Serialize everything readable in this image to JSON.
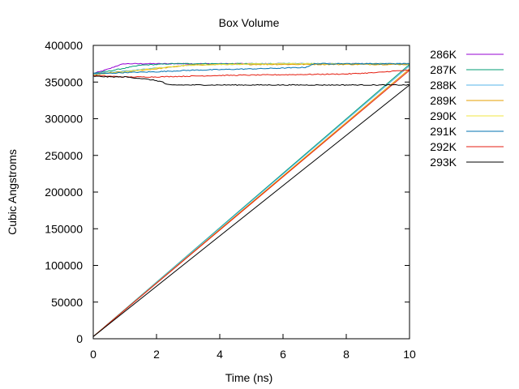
{
  "chart_data": {
    "type": "line",
    "title": "Box Volume",
    "xlabel": "Time (ns)",
    "ylabel": "Cubic Angstroms",
    "xlim": [
      0,
      10
    ],
    "ylim": [
      0,
      400000
    ],
    "xticks": [
      0,
      2,
      4,
      6,
      8,
      10
    ],
    "yticks": [
      0,
      50000,
      100000,
      150000,
      200000,
      250000,
      300000,
      350000,
      400000
    ],
    "grid": false,
    "legend_position": "outside-right",
    "series": [
      {
        "name": "286K",
        "color": "#9400d3",
        "x": [
          0,
          0.2,
          0.5,
          0.8,
          1.0,
          1.5,
          2.0,
          4.0,
          6.0,
          8.0,
          10.0
        ],
        "y": [
          362000,
          364000,
          368000,
          373000,
          375000,
          375000,
          375000,
          375000,
          375000,
          375000,
          375000
        ]
      },
      {
        "name": "287K",
        "color": "#009e73",
        "x": [
          0,
          0.5,
          1.0,
          1.5,
          2.0,
          2.5,
          4.0,
          6.0,
          8.0,
          10.0
        ],
        "y": [
          362000,
          365000,
          369000,
          373000,
          374000,
          375000,
          375000,
          375000,
          375000,
          375000
        ]
      },
      {
        "name": "288K",
        "color": "#56b4e9",
        "x": [
          0,
          0.5,
          1.0,
          2.0,
          3.0,
          4.0,
          6.0,
          8.0,
          10.0
        ],
        "y": [
          362000,
          363000,
          365000,
          369000,
          373000,
          374000,
          375000,
          375000,
          375000
        ]
      },
      {
        "name": "289K",
        "color": "#e69f00",
        "x": [
          0,
          1.0,
          2.0,
          3.0,
          4.0,
          6.0,
          8.0,
          10.0
        ],
        "y": [
          361000,
          364000,
          368000,
          373000,
          374000,
          374000,
          374000,
          374000
        ]
      },
      {
        "name": "290K",
        "color": "#f0e442",
        "x": [
          0,
          1.0,
          2.0,
          3.0,
          4.0,
          6.0,
          8.0,
          10.0
        ],
        "y": [
          360000,
          364000,
          369000,
          373000,
          374000,
          375000,
          375000,
          375000
        ]
      },
      {
        "name": "291K",
        "color": "#0072b2",
        "x": [
          0,
          1.0,
          2.0,
          3.0,
          4.0,
          5.0,
          6.0,
          6.7,
          7.0,
          8.0,
          10.0
        ],
        "y": [
          361000,
          363000,
          364000,
          366000,
          367000,
          368000,
          369000,
          370000,
          375000,
          375000,
          375000
        ]
      },
      {
        "name": "292K",
        "color": "#e51e10",
        "x": [
          0,
          0.5,
          1.0,
          2.0,
          3.0,
          4.0,
          6.0,
          8.0,
          9.0,
          9.5,
          10.0
        ],
        "y": [
          359000,
          358000,
          357000,
          357000,
          358000,
          359000,
          360000,
          361000,
          363000,
          365000,
          366000
        ]
      },
      {
        "name": "293K",
        "color": "#000000",
        "x": [
          0,
          0.5,
          1.0,
          1.5,
          2.0,
          2.2,
          2.3,
          2.4,
          3.0,
          6.0,
          10.0
        ],
        "y": [
          358000,
          357000,
          357000,
          355000,
          352000,
          350000,
          347000,
          346000,
          346000,
          346000,
          346000
        ]
      }
    ],
    "ramp_lines": [
      {
        "color": "#009e73",
        "x": [
          0,
          10
        ],
        "y": [
          3000,
          374000
        ]
      },
      {
        "color": "#56b4e9",
        "x": [
          0,
          10
        ],
        "y": [
          3000,
          372000
        ]
      },
      {
        "color": "#e69f00",
        "x": [
          0,
          10
        ],
        "y": [
          3000,
          368000
        ]
      },
      {
        "color": "#e51e10",
        "x": [
          0,
          10
        ],
        "y": [
          3000,
          366000
        ]
      },
      {
        "color": "#000000",
        "x": [
          0,
          10
        ],
        "y": [
          3000,
          346000
        ]
      }
    ]
  }
}
